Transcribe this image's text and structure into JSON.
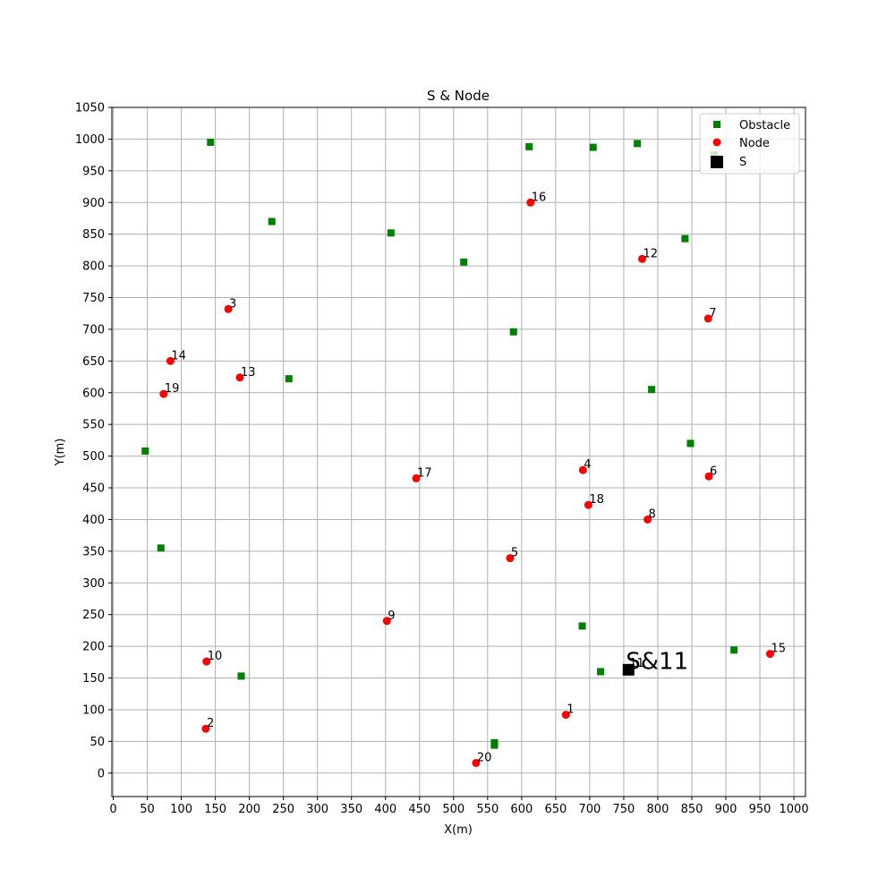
{
  "chart_data": {
    "type": "scatter",
    "title": "S & Node",
    "xlabel": "X(m)",
    "ylabel": "Y(m)",
    "xlim": [
      -2,
      1017
    ],
    "ylim": [
      -37,
      1050
    ],
    "xticks": [
      0,
      50,
      100,
      150,
      200,
      250,
      300,
      350,
      400,
      450,
      500,
      550,
      600,
      650,
      700,
      750,
      800,
      850,
      900,
      950,
      1000
    ],
    "yticks": [
      0,
      50,
      100,
      150,
      200,
      250,
      300,
      350,
      400,
      450,
      500,
      550,
      600,
      650,
      700,
      750,
      800,
      850,
      900,
      950,
      1000,
      1050
    ],
    "grid": true,
    "legend_position": "upper right",
    "series": [
      {
        "name": "Obstacle",
        "marker": "square",
        "color": "#008000",
        "points": [
          {
            "x": 143,
            "y": 995
          },
          {
            "x": 233,
            "y": 870
          },
          {
            "x": 408,
            "y": 852
          },
          {
            "x": 515,
            "y": 806
          },
          {
            "x": 588,
            "y": 696
          },
          {
            "x": 611,
            "y": 988
          },
          {
            "x": 705,
            "y": 987
          },
          {
            "x": 770,
            "y": 993
          },
          {
            "x": 840,
            "y": 843
          },
          {
            "x": 883,
            "y": 975
          },
          {
            "x": 258,
            "y": 622
          },
          {
            "x": 47,
            "y": 508
          },
          {
            "x": 791,
            "y": 605
          },
          {
            "x": 848,
            "y": 520
          },
          {
            "x": 70,
            "y": 355
          },
          {
            "x": 689,
            "y": 232
          },
          {
            "x": 716,
            "y": 160
          },
          {
            "x": 912,
            "y": 194
          },
          {
            "x": 188,
            "y": 153
          },
          {
            "x": 560,
            "y": 48
          },
          {
            "x": 560,
            "y": 44
          }
        ]
      },
      {
        "name": "Node",
        "marker": "circle",
        "color": "#ff0000",
        "points": [
          {
            "label": "1",
            "x": 665,
            "y": 92
          },
          {
            "label": "2",
            "x": 136,
            "y": 70
          },
          {
            "label": "3",
            "x": 169,
            "y": 732
          },
          {
            "label": "4",
            "x": 690,
            "y": 478
          },
          {
            "label": "5",
            "x": 583,
            "y": 339
          },
          {
            "label": "6",
            "x": 875,
            "y": 468
          },
          {
            "label": "7",
            "x": 874,
            "y": 717
          },
          {
            "label": "8",
            "x": 785,
            "y": 400
          },
          {
            "label": "9",
            "x": 402,
            "y": 240
          },
          {
            "label": "10",
            "x": 137,
            "y": 176
          },
          {
            "label": "11",
            "x": 757,
            "y": 165
          },
          {
            "label": "12",
            "x": 777,
            "y": 811
          },
          {
            "label": "13",
            "x": 186,
            "y": 624
          },
          {
            "label": "14",
            "x": 84,
            "y": 650
          },
          {
            "label": "15",
            "x": 965,
            "y": 188
          },
          {
            "label": "16",
            "x": 613,
            "y": 900
          },
          {
            "label": "17",
            "x": 445,
            "y": 465
          },
          {
            "label": "18",
            "x": 698,
            "y": 423
          },
          {
            "label": "19",
            "x": 74,
            "y": 598
          },
          {
            "label": "20",
            "x": 533,
            "y": 16
          }
        ]
      },
      {
        "name": "S",
        "marker": "square",
        "color": "#000000",
        "points": [
          {
            "label": "S&11",
            "x": 757,
            "y": 163
          }
        ]
      }
    ]
  }
}
